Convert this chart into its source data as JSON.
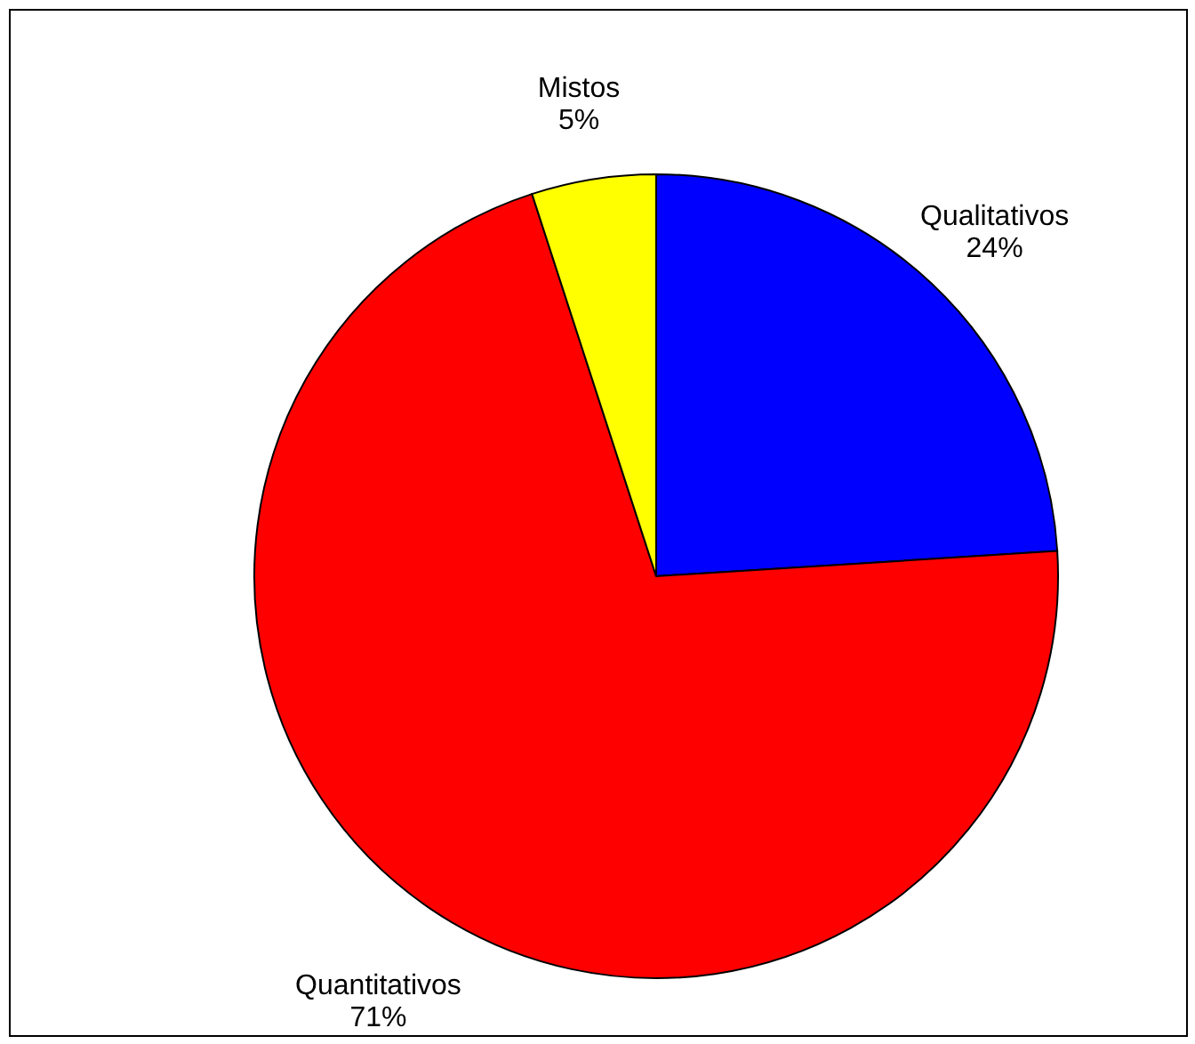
{
  "chart_data": {
    "type": "pie",
    "categories": [
      "Qualitativos",
      "Quantitativos",
      "Mistos"
    ],
    "values": [
      24,
      71,
      5
    ],
    "value_labels": [
      "24%",
      "71%",
      "5%"
    ],
    "colors": [
      "#0000ff",
      "#ff0000",
      "#ffff00"
    ]
  }
}
